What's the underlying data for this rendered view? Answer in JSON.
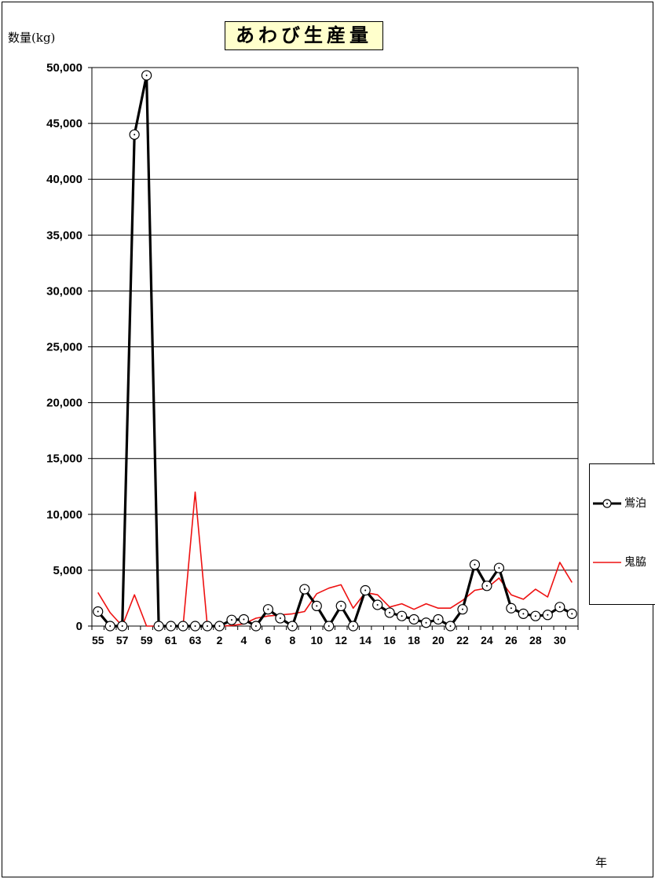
{
  "chart_data": {
    "type": "line",
    "title": "あわび生産量",
    "ylabel": "数量(kg)",
    "xlabel": "年",
    "ylim": [
      0,
      50000
    ],
    "y_ticks": [
      0,
      5000,
      10000,
      15000,
      20000,
      25000,
      30000,
      35000,
      40000,
      45000,
      50000
    ],
    "y_tick_labels": [
      "0",
      "5,000",
      "10,000",
      "15,000",
      "20,000",
      "25,000",
      "30,000",
      "35,000",
      "40,000",
      "45,000",
      "50,000"
    ],
    "grid": true,
    "legend_position": "right",
    "categories": [
      "55",
      "56",
      "57",
      "58",
      "59",
      "60",
      "61",
      "62",
      "63",
      "1",
      "2",
      "3",
      "4",
      "5",
      "6",
      "7",
      "8",
      "9",
      "10",
      "11",
      "12",
      "13",
      "14",
      "15",
      "16",
      "17",
      "18",
      "19",
      "20",
      "21",
      "22",
      "23",
      "24",
      "25",
      "26",
      "27",
      "28",
      "29",
      "30",
      "31"
    ],
    "x_tick_labels": [
      "55",
      "57",
      "59",
      "61",
      "63",
      "2",
      "4",
      "6",
      "8",
      "10",
      "12",
      "14",
      "16",
      "18",
      "20",
      "22",
      "24",
      "26",
      "28",
      "30"
    ],
    "series": [
      {
        "name": "鴬泊",
        "color": "#000000",
        "marker": "circle-dot",
        "values": [
          1300,
          0,
          0,
          44000,
          49300,
          0,
          0,
          0,
          0,
          0,
          0,
          550,
          600,
          0,
          1500,
          700,
          0,
          3300,
          1800,
          0,
          1800,
          0,
          3200,
          1900,
          1200,
          900,
          600,
          300,
          600,
          0,
          1500,
          5500,
          3600,
          5200,
          1600,
          1100,
          900,
          1000,
          1700,
          1100
        ]
      },
      {
        "name": "鬼脇",
        "color": "#ee1111",
        "marker": "none",
        "values": [
          3000,
          1200,
          0,
          2800,
          0,
          0,
          0,
          0,
          12000,
          0,
          0,
          50,
          200,
          700,
          900,
          1000,
          1100,
          1300,
          2900,
          3400,
          3700,
          1600,
          3000,
          2800,
          1700,
          2000,
          1500,
          2000,
          1600,
          1600,
          2300,
          3200,
          3400,
          4300,
          2800,
          2400,
          3300,
          2600,
          5700,
          3900
        ]
      }
    ]
  }
}
